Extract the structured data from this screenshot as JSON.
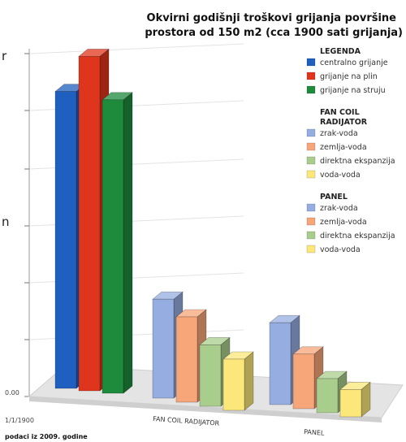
{
  "chart_data": {
    "type": "bar",
    "title_lines": [
      "Okvirni godišnji troškovi grijanja površine",
      "prostora od 150 m2 (cca 1900 sati grijanja)"
    ],
    "y_tick_labels": [
      "0.00"
    ],
    "x_corner_label": "1/1/1900",
    "ylim": [
      0,
      100
    ],
    "grid": true,
    "legend_position": "right",
    "groups": [
      {
        "category": "",
        "legend_title": "LEGENDA",
        "series": [
          {
            "name": "centralno grijanje",
            "value": 87,
            "color": "#1f5fbf"
          },
          {
            "name": "grijanje na plin",
            "value": 98,
            "color": "#e0351d"
          },
          {
            "name": "grijanje na struju",
            "value": 86,
            "color": "#1e8a3c"
          }
        ]
      },
      {
        "category": "FAN COIL RADIJATOR",
        "legend_title": "FAN COIL RADIJATOR",
        "series": [
          {
            "name": "zrak-voda",
            "value": 29,
            "color": "#95ade0"
          },
          {
            "name": "zemlja-voda",
            "value": 25,
            "color": "#f7a67a"
          },
          {
            "name": "direktna ekspanzija",
            "value": 18,
            "color": "#a9cd8c"
          },
          {
            "name": "voda-voda",
            "value": 15,
            "color": "#fbe77a"
          }
        ]
      },
      {
        "category": "PANEL",
        "legend_title": "PANEL",
        "series": [
          {
            "name": "zrak-voda",
            "value": 24,
            "color": "#95ade0"
          },
          {
            "name": "zemlja-voda",
            "value": 16,
            "color": "#f7a67a"
          },
          {
            "name": "direktna ekspanzija",
            "value": 10,
            "color": "#a9cd8c"
          },
          {
            "name": "voda-voda",
            "value": 8,
            "color": "#fbe77a"
          }
        ]
      }
    ],
    "footer_note": "podaci iz 2009. godine"
  },
  "side_glyphs": [
    "r",
    "n"
  ]
}
